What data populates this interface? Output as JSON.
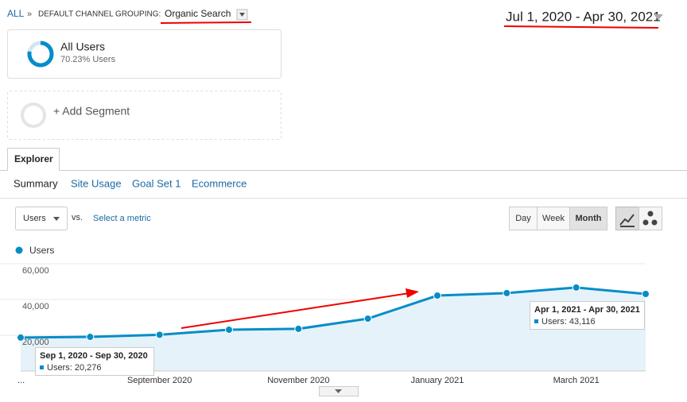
{
  "breadcrumb": {
    "root": "ALL",
    "separator": "»",
    "dimension": "DEFAULT CHANNEL GROUPING:",
    "value": "Organic Search"
  },
  "date_range": "Jul 1, 2020 - Apr 30, 2021",
  "segments": {
    "active": {
      "name": "All Users",
      "detail": "70.23% Users"
    },
    "add": "+ Add Segment"
  },
  "tabs": {
    "main": "Explorer",
    "sub": [
      "Summary",
      "Site Usage",
      "Goal Set 1",
      "Ecommerce"
    ]
  },
  "controls": {
    "metric": "Users",
    "vs": "vs.",
    "second_metric": "Select a metric",
    "granularity": [
      "Day",
      "Week",
      "Month"
    ]
  },
  "chart_data": {
    "type": "line",
    "categories": [
      "...",
      null,
      "September 2020",
      null,
      "November 2020",
      null,
      "January 2021",
      null,
      "March 2021",
      null
    ],
    "series": [
      {
        "name": "Users",
        "color": "#058dc7",
        "values": [
          18700,
          19100,
          20276,
          23100,
          23600,
          29300,
          42200,
          43600,
          46700,
          43116
        ]
      }
    ],
    "ylim": [
      0,
      60000
    ],
    "yticks": [
      {
        "value": 20000,
        "label": "20,000"
      },
      {
        "value": 40000,
        "label": "40,000"
      },
      {
        "value": 60000,
        "label": "60,000"
      }
    ],
    "grid": true,
    "tooltips": [
      {
        "index": 2,
        "range": "Sep 1, 2020 - Sep 30, 2020",
        "text": "Users: 20,276"
      },
      {
        "index": 9,
        "range": "Apr 1, 2021 - Apr 30, 2021",
        "text": "Users: 43,116"
      }
    ]
  }
}
